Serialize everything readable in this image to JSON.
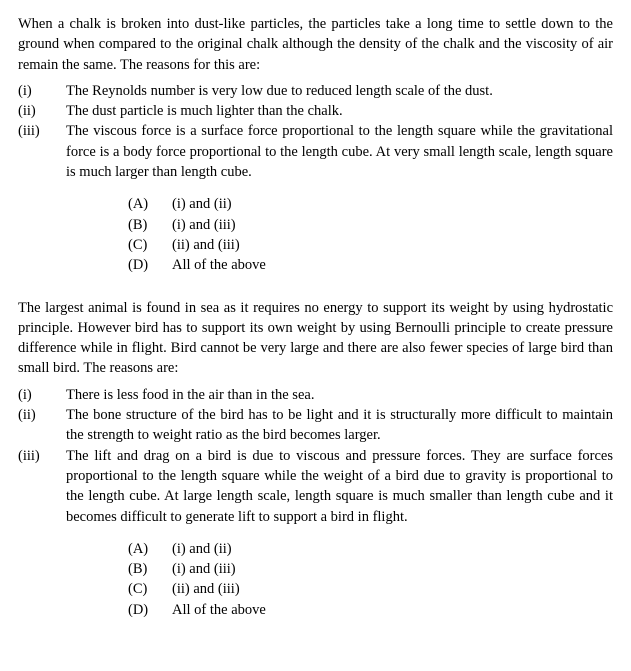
{
  "q1": {
    "intro": "When a chalk is broken into dust-like particles, the particles take a long time to settle down to the ground when compared to the original chalk although the density of the chalk and the viscosity of air remain the same. The reasons for this are:",
    "reasons": [
      {
        "label": "(i)",
        "text": "The Reynolds number is very low due to reduced length scale of the dust."
      },
      {
        "label": "(ii)",
        "text": "The dust particle is much lighter than the chalk."
      },
      {
        "label": "(iii)",
        "text": "The viscous force is a surface force proportional to the length square while the gravitational force is a body force proportional to the length cube. At very small length scale, length square is much larger than length cube."
      }
    ],
    "options": [
      {
        "label": "(A)",
        "text": "(i) and (ii)"
      },
      {
        "label": "(B)",
        "text": "(i) and (iii)"
      },
      {
        "label": "(C)",
        "text": "(ii) and (iii)"
      },
      {
        "label": "(D)",
        "text": "All of the above"
      }
    ]
  },
  "q2": {
    "intro": "The largest animal is found in sea as it requires no energy to support its weight by using hydrostatic principle. However bird has to support its own weight by using Bernoulli principle to create pressure difference while in flight. Bird cannot be very large and there are also fewer species of large bird than small bird. The reasons are:",
    "reasons": [
      {
        "label": "(i)",
        "text": "There is less food in the air than in the sea."
      },
      {
        "label": "(ii)",
        "text": "The bone structure of the bird has to be light and it is structurally more difficult to maintain the strength to weight ratio as the bird becomes larger."
      },
      {
        "label": "(iii)",
        "text": "The lift and drag on a bird is due to viscous and pressure forces. They are surface forces proportional to the length square while the weight of a bird due to gravity is proportional to the length cube. At large length scale, length square is much smaller than length cube and it becomes difficult to generate lift to support a bird in flight."
      }
    ],
    "options": [
      {
        "label": "(A)",
        "text": "(i) and (ii)"
      },
      {
        "label": "(B)",
        "text": "(i) and (iii)"
      },
      {
        "label": "(C)",
        "text": "(ii) and (iii)"
      },
      {
        "label": "(D)",
        "text": "All of the above"
      }
    ]
  }
}
